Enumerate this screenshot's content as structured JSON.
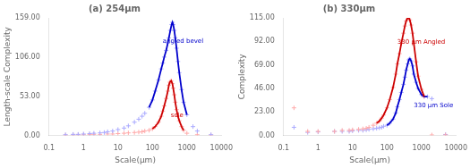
{
  "chart_data": [
    {
      "type": "scatter",
      "title": "(a) 254μm",
      "xlabel": "Scale(μm)",
      "ylabel": "Length-scale Complexity",
      "log": "x",
      "grid": false,
      "xlim": [
        0.1,
        10000
      ],
      "xticks": [
        0.1,
        1,
        10,
        100,
        1000,
        10000
      ],
      "ylim": [
        0,
        159.0
      ],
      "yticks": [
        {
          "value": 0.0,
          "label": "0.00"
        },
        {
          "value": 53.0,
          "label": "53.00"
        },
        {
          "value": 106.0,
          "label": "106.00"
        },
        {
          "value": 159.0,
          "label": "159.00"
        }
      ],
      "series": [
        {
          "type": "scatter",
          "marker": "plus",
          "color": "#aaaaff",
          "x": [
            0.3,
            0.5,
            0.7,
            1.0,
            1.5,
            2.0,
            3.0,
            4.0,
            5.0,
            7.0,
            10.0,
            15.0,
            20.0,
            30.0,
            40.0,
            50.0,
            60.0,
            80.0,
            100.0,
            120.0,
            150.0,
            180.0,
            200.0,
            220.0,
            250.0,
            280.0,
            300.0,
            330.0,
            360.0,
            380.0,
            400.0,
            430.0,
            460.0,
            500.0,
            550.0,
            600.0,
            700.0,
            800.0,
            1000.0,
            1500.0,
            2000.0,
            5000.0
          ],
          "values": [
            1.0,
            1.5,
            1.5,
            2.0,
            2.5,
            3.0,
            3.5,
            4.0,
            5.0,
            6.0,
            8.0,
            10.0,
            13.0,
            18.0,
            22.0,
            26.0,
            30.0,
            38.0,
            48.0,
            60.0,
            75.0,
            90.0,
            98.0,
            106.0,
            115.0,
            125.0,
            132.0,
            142.0,
            150.0,
            153.0,
            150.0,
            142.0,
            132.0,
            118.0,
            100.0,
            85.0,
            62.0,
            45.0,
            28.0,
            12.0,
            6.0,
            1.0
          ]
        },
        {
          "type": "scatter",
          "marker": "plus",
          "color": "#ffaaaa",
          "x": [
            0.3,
            0.5,
            0.7,
            1.0,
            1.5,
            2.0,
            3.0,
            5.0,
            7.0,
            10.0,
            15.0,
            20.0,
            30.0,
            40.0,
            50.0,
            60.0,
            80.0,
            100.0,
            120.0,
            150.0,
            180.0,
            200.0,
            220.0,
            250.0,
            280.0,
            300.0,
            320.0,
            350.0,
            380.0,
            400.0,
            430.0,
            460.0,
            500.0,
            550.0,
            600.0,
            700.0,
            800.0,
            1000.0,
            2000.0,
            5000.0
          ],
          "values": [
            0.5,
            0.8,
            1.0,
            1.0,
            1.2,
            1.5,
            1.5,
            2.0,
            2.0,
            2.5,
            3.0,
            3.5,
            4.0,
            4.5,
            5.0,
            6.0,
            7.0,
            9.0,
            12.0,
            18.0,
            26.0,
            33.0,
            40.0,
            50.0,
            60.0,
            68.0,
            72.0,
            74.0,
            70.0,
            64.0,
            55.0,
            45.0,
            35.0,
            26.0,
            20.0,
            12.0,
            7.0,
            3.0,
            1.0,
            0.5
          ]
        },
        {
          "type": "line",
          "line_style": "solid",
          "color": "#0000cc",
          "x": [
            80.0,
            100.0,
            120.0,
            150.0,
            180.0,
            200.0,
            220.0,
            250.0,
            280.0,
            300.0,
            330.0,
            360.0,
            380.0,
            400.0,
            430.0,
            460.0,
            500.0,
            550.0,
            600.0,
            700.0,
            800.0,
            1000.0
          ],
          "values": [
            38.0,
            48.0,
            60.0,
            75.0,
            90.0,
            98.0,
            106.0,
            115.0,
            125.0,
            132.0,
            142.0,
            150.0,
            153.0,
            150.0,
            142.0,
            132.0,
            118.0,
            100.0,
            85.0,
            62.0,
            45.0,
            28.0
          ]
        },
        {
          "type": "line",
          "line_style": "solid",
          "color": "#cc0000",
          "x": [
            100.0,
            120.0,
            150.0,
            180.0,
            200.0,
            220.0,
            250.0,
            280.0,
            300.0,
            320.0,
            350.0,
            380.0,
            400.0,
            430.0,
            460.0,
            500.0,
            550.0,
            600.0,
            700.0,
            800.0
          ],
          "values": [
            9.0,
            12.0,
            18.0,
            26.0,
            33.0,
            40.0,
            50.0,
            60.0,
            68.0,
            72.0,
            74.0,
            70.0,
            64.0,
            55.0,
            45.0,
            35.0,
            26.0,
            20.0,
            12.0,
            7.0
          ]
        }
      ],
      "annotations": [
        {
          "text": "angled bevel",
          "x": 200,
          "y": 125,
          "color": "#0000cc"
        },
        {
          "text": "sole",
          "x": 340,
          "y": 25,
          "color": "#cc0000"
        }
      ]
    },
    {
      "type": "scatter",
      "title": "(b) 330μm",
      "xlabel": "Scale(μm)",
      "ylabel": "Complexity",
      "log": "x",
      "grid": false,
      "xlim": [
        0.1,
        10000
      ],
      "xticks": [
        0.1,
        1,
        10,
        100,
        1000,
        10000
      ],
      "ylim": [
        0,
        115.0
      ],
      "yticks": [
        {
          "value": 0.0,
          "label": "0.00"
        },
        {
          "value": 23.0,
          "label": "23.00"
        },
        {
          "value": 46.0,
          "label": "46.00"
        },
        {
          "value": 69.0,
          "label": "69.00"
        },
        {
          "value": 92.0,
          "label": "92.00"
        },
        {
          "value": 115.0,
          "label": "115.00"
        }
      ],
      "series": [
        {
          "type": "scatter",
          "marker": "plus",
          "color": "#ffaaaa",
          "x": [
            0.2,
            0.5,
            1.0,
            3.0,
            5.0,
            8.0,
            10.0,
            15.0,
            20.0,
            25.0,
            30.0,
            40.0,
            50.0,
            60.0,
            70.0,
            80.0,
            100.0,
            120.0,
            150.0,
            180.0,
            200.0,
            230.0,
            260.0,
            300.0,
            330.0,
            360.0,
            400.0,
            430.0,
            460.0,
            500.0,
            550.0,
            600.0,
            700.0,
            800.0,
            1000.0,
            1200.0,
            2000.0,
            5000.0
          ],
          "values": [
            27.0,
            4.0,
            4.0,
            4.0,
            5.0,
            5.0,
            5.5,
            6.0,
            6.5,
            7.0,
            8.0,
            10.0,
            12.0,
            14.0,
            17.0,
            20.0,
            27.0,
            35.0,
            47.0,
            60.0,
            70.0,
            80.0,
            90.0,
            100.0,
            107.0,
            112.0,
            115.0,
            115.0,
            113.0,
            108.0,
            100.0,
            90.0,
            72.0,
            58.0,
            45.0,
            38.0,
            0.5,
            0.5
          ]
        },
        {
          "type": "scatter",
          "marker": "plus",
          "color": "#aaaaff",
          "x": [
            0.2,
            0.5,
            1.0,
            3.0,
            5.0,
            8.0,
            10.0,
            15.0,
            20.0,
            25.0,
            30.0,
            40.0,
            50.0,
            60.0,
            70.0,
            80.0,
            100.0,
            120.0,
            150.0,
            180.0,
            200.0,
            230.0,
            260.0,
            300.0,
            330.0,
            360.0,
            400.0,
            430.0,
            460.0,
            500.0,
            550.0,
            600.0,
            700.0,
            800.0,
            1000.0,
            1200.0,
            1500.0,
            2000.0,
            5000.0
          ],
          "values": [
            8.0,
            3.0,
            3.5,
            4.0,
            4.0,
            4.0,
            4.5,
            5.0,
            5.0,
            5.5,
            6.0,
            6.5,
            7.0,
            7.5,
            8.0,
            9.0,
            10.0,
            12.0,
            16.0,
            22.0,
            28.0,
            35.0,
            42.0,
            50.0,
            57.0,
            64.0,
            70.0,
            74.0,
            75.0,
            73.0,
            68.0,
            60.0,
            52.0,
            46.0,
            40.0,
            38.0,
            38.0,
            36.0,
            1.0
          ]
        },
        {
          "type": "line",
          "line_style": "solid",
          "color": "#cc0000",
          "x": [
            50.0,
            60.0,
            70.0,
            80.0,
            100.0,
            120.0,
            150.0,
            180.0,
            200.0,
            230.0,
            260.0,
            300.0,
            330.0,
            360.0,
            400.0,
            430.0,
            460.0,
            500.0,
            550.0,
            600.0,
            700.0,
            800.0,
            1000.0,
            1200.0
          ],
          "values": [
            12.0,
            14.0,
            17.0,
            20.0,
            27.0,
            35.0,
            47.0,
            60.0,
            70.0,
            80.0,
            90.0,
            100.0,
            107.0,
            112.0,
            115.0,
            115.0,
            113.0,
            108.0,
            100.0,
            90.0,
            72.0,
            58.0,
            45.0,
            38.0
          ]
        },
        {
          "type": "line",
          "line_style": "solid",
          "color": "#0000cc",
          "x": [
            100.0,
            120.0,
            150.0,
            180.0,
            200.0,
            230.0,
            260.0,
            300.0,
            330.0,
            360.0,
            400.0,
            430.0,
            460.0,
            500.0,
            550.0,
            600.0,
            700.0,
            800.0,
            1000.0,
            1200.0,
            1500.0
          ],
          "values": [
            10.0,
            12.0,
            16.0,
            22.0,
            28.0,
            35.0,
            42.0,
            50.0,
            57.0,
            64.0,
            70.0,
            74.0,
            75.0,
            73.0,
            68.0,
            60.0,
            52.0,
            46.0,
            40.0,
            38.0,
            38.0
          ]
        }
      ],
      "annotations": [
        {
          "text": "330 μm Angled",
          "x": 200,
          "y": 90,
          "color": "#cc0000"
        },
        {
          "text": "330 μm Sole",
          "x": 600,
          "y": 28,
          "color": "#0000cc"
        }
      ]
    }
  ]
}
